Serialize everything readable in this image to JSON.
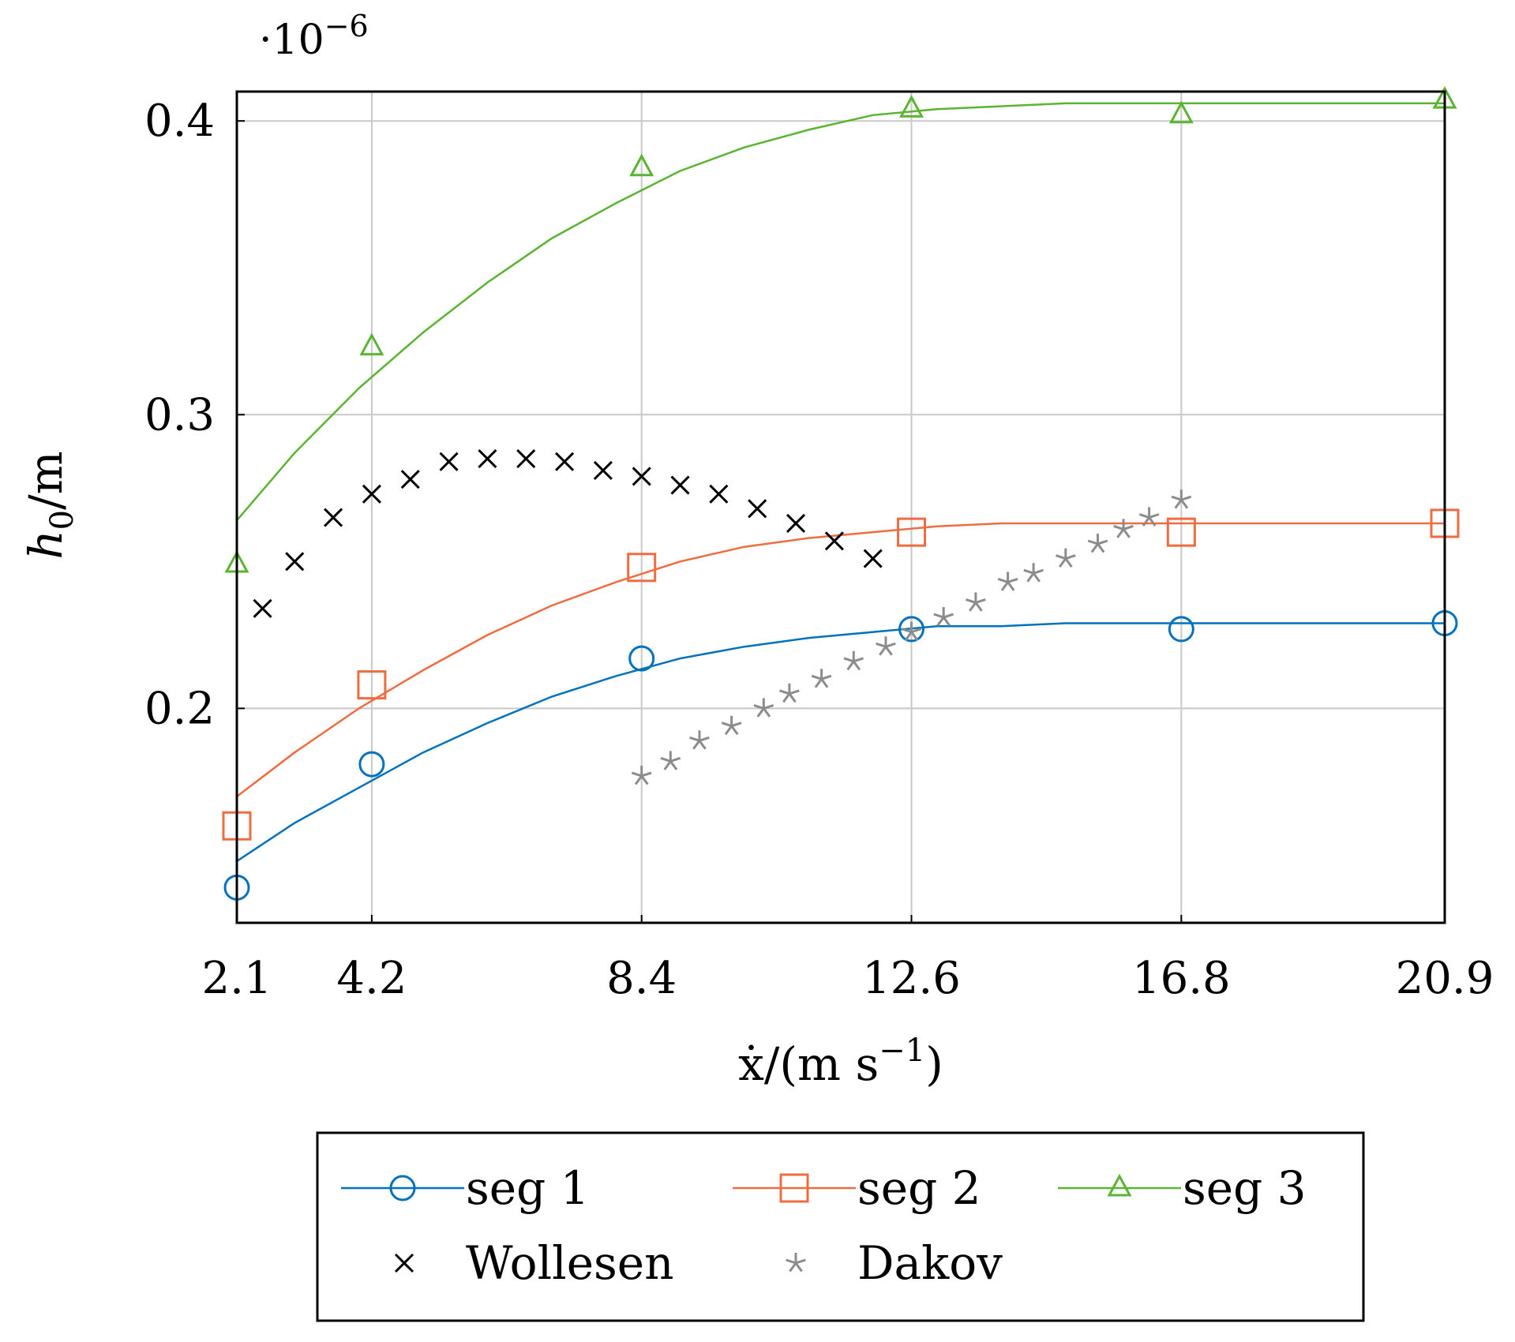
{
  "chart_data": {
    "type": "line",
    "title": "",
    "scale_label": "·10",
    "scale_exponent": "−6",
    "xlabel": "ẋ/(m s",
    "xlabel_exponent": "−1",
    "xlabel_close": ")",
    "ylabel": "h",
    "ylabel_subscript": "0",
    "ylabel_suffix": "/m",
    "xlim": [
      2.1,
      20.9
    ],
    "ylim": [
      0.127,
      0.41
    ],
    "x_ticks": [
      2.1,
      4.2,
      8.4,
      12.6,
      16.8,
      20.9
    ],
    "x_tick_labels": [
      "2.1",
      "4.2",
      "8.4",
      "12.6",
      "16.8",
      "20.9"
    ],
    "y_ticks": [
      0.2,
      0.3,
      0.4
    ],
    "y_tick_labels": [
      "0.2",
      "0.3",
      "0.4"
    ],
    "grid": true,
    "legend_position": "below",
    "series": [
      {
        "name": "seg 1",
        "color": "#0072bd",
        "marker": "circle",
        "x": [
          2.1,
          4.2,
          8.4,
          12.6,
          16.8,
          20.9
        ],
        "y": [
          0.139,
          0.181,
          0.217,
          0.227,
          0.227,
          0.229
        ],
        "fit_x": [
          2.1,
          3.0,
          4.0,
          5.0,
          6.0,
          7.0,
          8.0,
          9.0,
          10.0,
          11.0,
          12.0,
          13.0,
          14.0,
          15.0,
          16.0,
          17.0,
          18.0,
          19.0,
          20.0,
          20.9
        ],
        "fit_y": [
          0.148,
          0.161,
          0.173,
          0.185,
          0.195,
          0.204,
          0.211,
          0.217,
          0.221,
          0.224,
          0.226,
          0.228,
          0.228,
          0.229,
          0.229,
          0.229,
          0.229,
          0.229,
          0.229,
          0.229
        ]
      },
      {
        "name": "seg 2",
        "color": "#ef6c40",
        "marker": "square",
        "x": [
          2.1,
          4.2,
          8.4,
          12.6,
          16.8,
          20.9
        ],
        "y": [
          0.16,
          0.208,
          0.248,
          0.26,
          0.26,
          0.263
        ],
        "fit_x": [
          2.1,
          3.0,
          4.0,
          5.0,
          6.0,
          7.0,
          8.0,
          9.0,
          10.0,
          11.0,
          12.0,
          13.0,
          14.0,
          15.0,
          16.0,
          17.0,
          18.0,
          19.0,
          20.0,
          20.9
        ],
        "fit_y": [
          0.17,
          0.185,
          0.2,
          0.213,
          0.225,
          0.235,
          0.243,
          0.25,
          0.255,
          0.258,
          0.26,
          0.262,
          0.263,
          0.263,
          0.263,
          0.263,
          0.263,
          0.263,
          0.263,
          0.263
        ]
      },
      {
        "name": "seg 3",
        "color": "#5ab432",
        "marker": "triangle",
        "x": [
          2.1,
          4.2,
          8.4,
          12.6,
          16.8,
          20.9
        ],
        "y": [
          0.249,
          0.323,
          0.384,
          0.404,
          0.402,
          0.407
        ],
        "fit_x": [
          2.1,
          3.0,
          4.0,
          5.0,
          6.0,
          7.0,
          8.0,
          9.0,
          10.0,
          11.0,
          12.0,
          13.0,
          14.0,
          15.0,
          16.0,
          17.0,
          18.0,
          19.0,
          20.0,
          20.9
        ],
        "fit_y": [
          0.264,
          0.287,
          0.309,
          0.328,
          0.345,
          0.36,
          0.372,
          0.383,
          0.391,
          0.397,
          0.402,
          0.404,
          0.405,
          0.406,
          0.406,
          0.406,
          0.406,
          0.406,
          0.406,
          0.406
        ]
      },
      {
        "name": "Wollesen",
        "color": "#000000",
        "marker": "x",
        "x": [
          2.5,
          3.0,
          3.6,
          4.2,
          4.8,
          5.4,
          6.0,
          6.6,
          7.2,
          7.8,
          8.4,
          9.0,
          9.6,
          10.2,
          10.8,
          11.4,
          12.0
        ],
        "y": [
          0.234,
          0.25,
          0.265,
          0.273,
          0.278,
          0.284,
          0.285,
          0.285,
          0.284,
          0.281,
          0.279,
          0.276,
          0.273,
          0.268,
          0.263,
          0.257,
          0.251
        ]
      },
      {
        "name": "Dakov",
        "color": "#8c8c8c",
        "marker": "star",
        "x": [
          8.4,
          8.85,
          9.3,
          9.8,
          10.3,
          10.7,
          11.2,
          11.7,
          12.2,
          12.6,
          13.1,
          13.6,
          14.1,
          14.5,
          15.0,
          15.5,
          15.9,
          16.3,
          16.8
        ],
        "y": [
          0.177,
          0.182,
          0.189,
          0.194,
          0.2,
          0.205,
          0.21,
          0.216,
          0.221,
          0.226,
          0.231,
          0.236,
          0.243,
          0.246,
          0.251,
          0.256,
          0.261,
          0.265,
          0.271
        ]
      }
    ]
  }
}
